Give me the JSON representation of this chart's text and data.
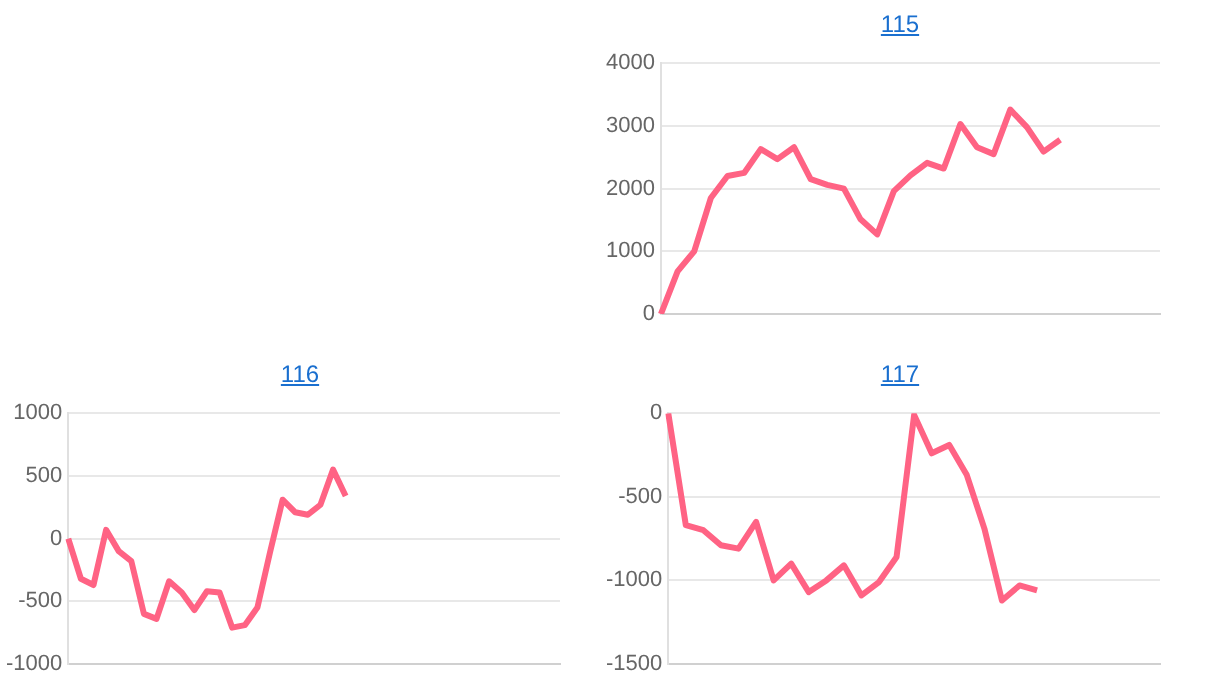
{
  "chart_data": [
    {
      "type": "line",
      "title": "115",
      "categories": [
        null,
        null,
        null,
        null,
        null,
        null,
        null,
        null,
        null,
        null,
        null,
        null,
        null,
        null,
        null,
        null,
        null,
        null,
        null,
        null,
        null,
        null,
        null,
        null,
        null,
        null,
        null,
        null,
        null,
        null,
        null
      ],
      "series": [
        {
          "color": "#ff6384",
          "values": [
            0,
            680,
            1000,
            1850,
            2200,
            2250,
            2630,
            2470,
            2660,
            2150,
            2060,
            2000,
            1510,
            1270,
            1960,
            2210,
            2410,
            2320,
            3030,
            2660,
            2550,
            3260,
            2980,
            2590,
            2780,
            null,
            null,
            null,
            null,
            null,
            null
          ]
        }
      ],
      "ylim": [
        0,
        4000
      ],
      "yticks": [
        0,
        1000,
        2000,
        3000,
        4000
      ],
      "grid": "y",
      "tick_labels": "y",
      "marker": "none"
    },
    {
      "type": "line",
      "title": "116",
      "categories": [
        null,
        null,
        null,
        null,
        null,
        null,
        null,
        null,
        null,
        null,
        null,
        null,
        null,
        null,
        null,
        null,
        null,
        null,
        null,
        null,
        null,
        null,
        null,
        null,
        null,
        null,
        null,
        null,
        null,
        null,
        null,
        null,
        null,
        null,
        null,
        null,
        null,
        null,
        null,
        null
      ],
      "series": [
        {
          "color": "#ff6384",
          "values": [
            0,
            -320,
            -370,
            70,
            -100,
            -180,
            -600,
            -640,
            -340,
            -430,
            -570,
            -420,
            -430,
            -710,
            -690,
            -550,
            -110,
            310,
            210,
            190,
            270,
            550,
            340,
            null,
            null,
            null,
            null,
            null,
            null,
            null,
            null,
            null,
            null,
            null,
            null,
            null,
            null,
            null,
            null,
            null
          ]
        }
      ],
      "ylim": [
        -1000,
        1000
      ],
      "yticks": [
        -1000,
        -500,
        0,
        500,
        1000
      ],
      "grid": "y",
      "tick_labels": "y",
      "marker": "none"
    },
    {
      "type": "line",
      "title": "117",
      "categories": [
        null,
        null,
        null,
        null,
        null,
        null,
        null,
        null,
        null,
        null,
        null,
        null,
        null,
        null,
        null,
        null,
        null,
        null,
        null,
        null,
        null,
        null,
        null,
        null,
        null,
        null,
        null,
        null,
        null
      ],
      "series": [
        {
          "color": "#ff6384",
          "values": [
            0,
            -670,
            -700,
            -790,
            -810,
            -650,
            -1000,
            -900,
            -1070,
            -1000,
            -910,
            -1090,
            -1010,
            -860,
            -10,
            -240,
            -190,
            -370,
            -690,
            -1120,
            -1030,
            -1060,
            null,
            null,
            null,
            null,
            null,
            null,
            null
          ]
        }
      ],
      "ylim": [
        -1500,
        0
      ],
      "yticks": [
        -1500,
        -1000,
        -500,
        0
      ],
      "grid": "y",
      "tick_labels": "y",
      "marker": "none"
    }
  ]
}
